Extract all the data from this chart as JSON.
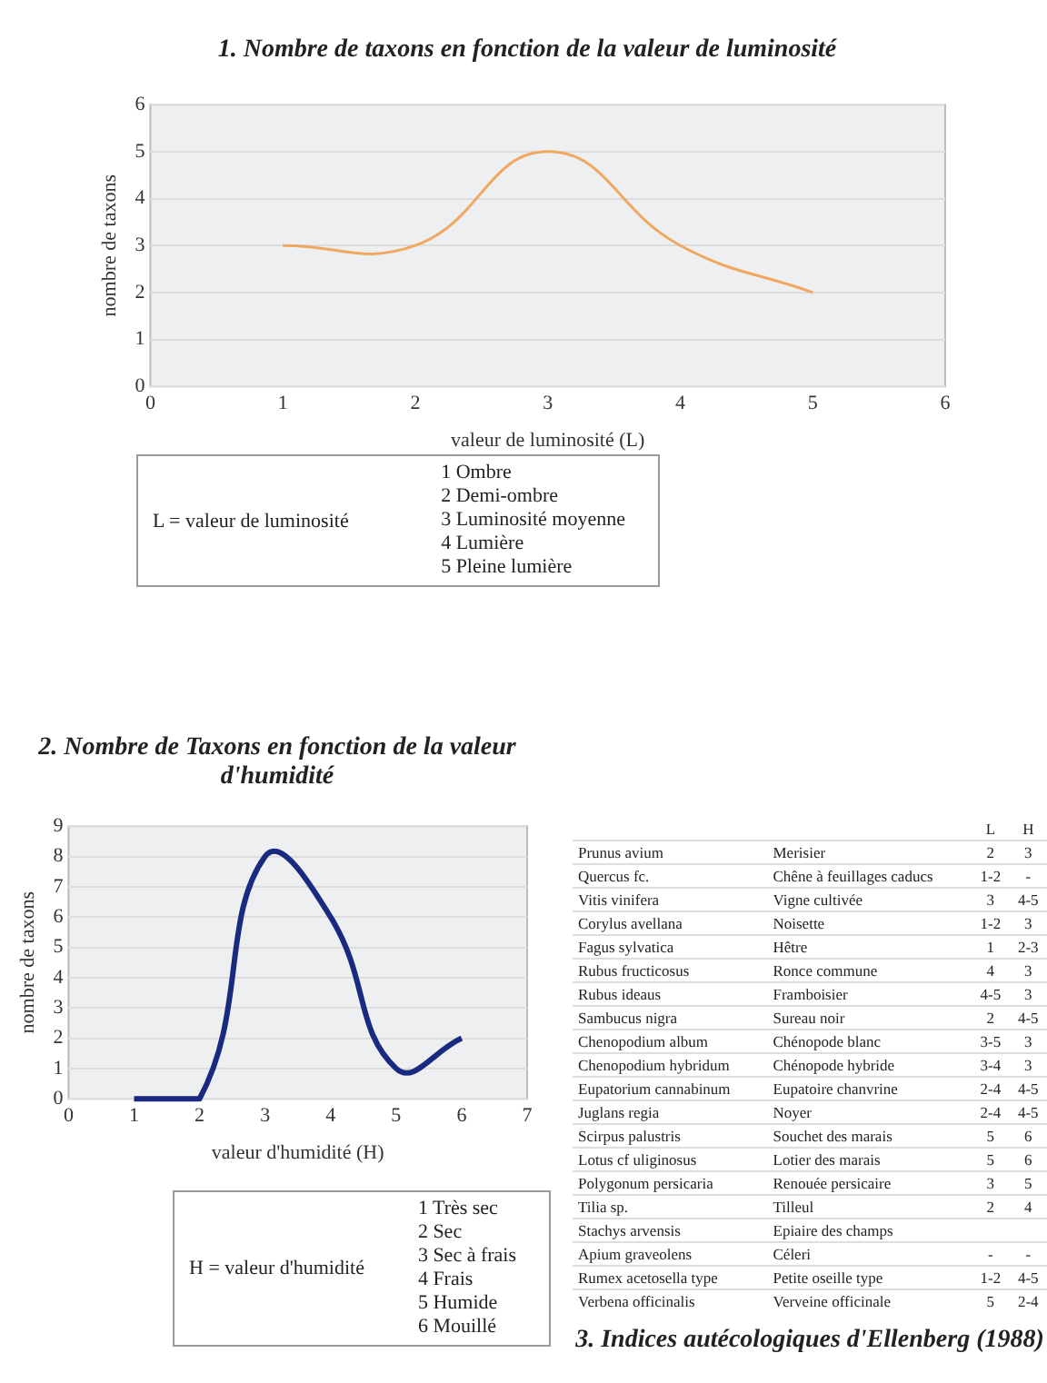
{
  "chart_data": [
    {
      "type": "line",
      "title": "1. Nombre de taxons en fonction de la valeur de luminosité",
      "xlabel": "valeur de luminosité (L)",
      "ylabel": "nombre de taxons",
      "x": [
        1,
        2,
        3,
        4,
        5
      ],
      "series": [
        {
          "color": "#f0a860",
          "values": [
            3,
            3,
            5,
            3,
            2
          ]
        }
      ],
      "xlim": [
        0,
        6
      ],
      "xticks": [
        0,
        1,
        2,
        3,
        4,
        5,
        6
      ],
      "ylim": [
        0,
        6
      ],
      "yticks": [
        0,
        1,
        2,
        3,
        4,
        5,
        6
      ],
      "grid": "y",
      "annotations": [
        "L = valeur de luminosité",
        "1 Ombre",
        "2 Demi-ombre",
        "3 Luminosité moyenne",
        "4 Lumière",
        "5 Pleine lumière"
      ]
    },
    {
      "type": "line",
      "title": "2. Nombre de Taxons en fonction de la valeur d'humidité",
      "xlabel": "valeur d'humidité (H)",
      "ylabel": "nombre de taxons",
      "x": [
        1,
        2,
        3,
        4,
        5,
        6
      ],
      "series": [
        {
          "color": "#1a2a80",
          "values": [
            0,
            0,
            8,
            6,
            1,
            2
          ]
        }
      ],
      "xlim": [
        0,
        7
      ],
      "xticks": [
        0,
        1,
        2,
        3,
        4,
        5,
        6,
        7
      ],
      "ylim": [
        0,
        9
      ],
      "yticks": [
        0,
        1,
        2,
        3,
        4,
        5,
        6,
        7,
        8,
        9
      ],
      "grid": "y",
      "annotations": [
        "H = valeur d'humidité",
        "1 Très sec",
        "2 Sec",
        "3 Sec à frais",
        "4 Frais",
        "5 Humide",
        "6 Mouillé"
      ]
    },
    {
      "type": "other",
      "title": "3. Indices autécologiques d'Ellenberg (1988)",
      "annotations": [
        "L",
        "H",
        "Prunus avium",
        "Merisier",
        "2",
        "3",
        "Quercus fc.",
        "Chêne à feuillages caducs",
        "1-2",
        "-",
        "Vitis vinifera",
        "Vigne cultivée",
        "3",
        "4-5",
        "Corylus avellana",
        "Noisette",
        "1-2",
        "3",
        "Fagus sylvatica",
        "Hêtre",
        "1",
        "2-3",
        "Rubus fructicosus",
        "Ronce commune",
        "4",
        "3",
        "Rubus ideaus",
        "Framboisier",
        "4-5",
        "3",
        "Sambucus nigra",
        "Sureau noir",
        "2",
        "4-5",
        "Chenopodium album",
        "Chénopode blanc",
        "3-5",
        "3",
        "Chenopodium hybridum",
        "Chénopode hybride",
        "3-4",
        "3",
        "Eupatorium cannabinum",
        "Eupatoire chanvrine",
        "2-4",
        "4-5",
        "Juglans regia",
        "Noyer",
        "2-4",
        "4-5",
        "Scirpus palustris",
        "Souchet des marais",
        "5",
        "6",
        "Lotus cf uliginosus",
        "Lotier des marais",
        "5",
        "6",
        "Polygonum persicaria",
        "Renouée persicaire",
        "3",
        "5",
        "Tilia sp.",
        "Tilleul",
        "2",
        "4",
        "Stachys arvensis",
        "Epiaire des champs",
        null,
        null,
        "Apium graveolens",
        "Céleri",
        "-",
        "-",
        "Rumex acetosella type",
        "Petite oseille type",
        "1-2",
        "4-5",
        "Verbena officinalis",
        "Verveine officinale",
        "5",
        "2-4"
      ]
    }
  ]
}
